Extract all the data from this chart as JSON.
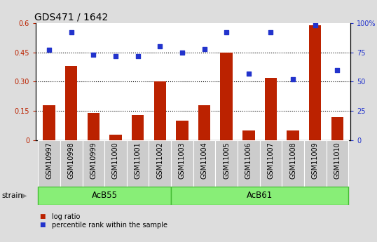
{
  "title": "GDS471 / 1642",
  "samples": [
    "GSM10997",
    "GSM10998",
    "GSM10999",
    "GSM11000",
    "GSM11001",
    "GSM11002",
    "GSM11003",
    "GSM11004",
    "GSM11005",
    "GSM11006",
    "GSM11007",
    "GSM11008",
    "GSM11009",
    "GSM11010"
  ],
  "log_ratio": [
    0.18,
    0.38,
    0.14,
    0.03,
    0.13,
    0.3,
    0.1,
    0.18,
    0.45,
    0.05,
    0.32,
    0.05,
    0.59,
    0.12
  ],
  "percentile_rank": [
    77,
    92,
    73,
    72,
    72,
    80,
    75,
    78,
    92,
    57,
    92,
    52,
    98,
    60
  ],
  "groups": [
    {
      "label": "AcB55",
      "start": 0,
      "end": 5
    },
    {
      "label": "AcB61",
      "start": 6,
      "end": 13
    }
  ],
  "left_ylim": [
    0,
    0.6
  ],
  "right_ylim": [
    0,
    100
  ],
  "left_yticks": [
    0,
    0.15,
    0.3,
    0.45,
    0.6
  ],
  "right_yticks": [
    0,
    25,
    50,
    75,
    100
  ],
  "left_ytick_labels": [
    "0",
    "0.15",
    "0.30",
    "0.45",
    "0.6"
  ],
  "right_ytick_labels": [
    "0",
    "25",
    "50",
    "75",
    "100%"
  ],
  "bar_color": "#bb2200",
  "dot_color": "#2233cc",
  "background_color": "#dddddd",
  "plot_bg_color": "#ffffff",
  "xtick_bg_color": "#cccccc",
  "group_bg_color": "#88ee77",
  "group_border_color": "#44bb33",
  "legend_bar_label": "log ratio",
  "legend_dot_label": "percentile rank within the sample",
  "strain_label": "strain",
  "dotted_line_color": "#000000",
  "title_fontsize": 10,
  "tick_fontsize": 7,
  "label_fontsize": 7.5,
  "group_fontsize": 8.5
}
